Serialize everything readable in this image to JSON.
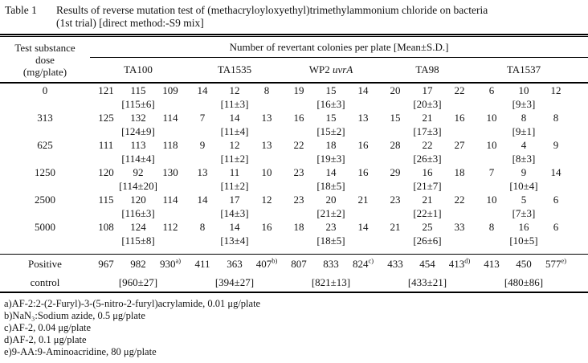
{
  "title": {
    "label": "Table 1",
    "line1": "Results of reverse mutation test of (methacryloyloxyethyl)trimethylammonium chloride on bacteria",
    "line2": "(1st trial) [direct method:-S9 mix]"
  },
  "table": {
    "dose_header": [
      "Test substance",
      "dose",
      "(mg/plate)"
    ],
    "span_header": "Number of revertant colonies per plate [Mean±S.D.]",
    "strains": [
      {
        "name": "TA100",
        "italic": ""
      },
      {
        "name": "TA1535",
        "italic": ""
      },
      {
        "name": "WP2 ",
        "italic": "uvrA"
      },
      {
        "name": "TA98",
        "italic": ""
      },
      {
        "name": "TA1537",
        "italic": ""
      }
    ],
    "dose_rows": [
      {
        "dose": "0",
        "plates": [
          [
            "121",
            "115",
            "109"
          ],
          [
            "14",
            "12",
            "8"
          ],
          [
            "19",
            "15",
            "14"
          ],
          [
            "20",
            "17",
            "22"
          ],
          [
            "6",
            "10",
            "12"
          ]
        ],
        "means": [
          "[115±6]",
          "[11±3]",
          "[16±3]",
          "[20±3]",
          "[9±3]"
        ]
      },
      {
        "dose": "313",
        "plates": [
          [
            "125",
            "132",
            "114"
          ],
          [
            "7",
            "14",
            "13"
          ],
          [
            "16",
            "15",
            "13"
          ],
          [
            "15",
            "21",
            "16"
          ],
          [
            "10",
            "8",
            "8"
          ]
        ],
        "means": [
          "[124±9]",
          "[11±4]",
          "[15±2]",
          "[17±3]",
          "[9±1]"
        ]
      },
      {
        "dose": "625",
        "plates": [
          [
            "111",
            "113",
            "118"
          ],
          [
            "9",
            "12",
            "13"
          ],
          [
            "22",
            "18",
            "16"
          ],
          [
            "28",
            "22",
            "27"
          ],
          [
            "10",
            "4",
            "9"
          ]
        ],
        "means": [
          "[114±4]",
          "[11±2]",
          "[19±3]",
          "[26±3]",
          "[8±3]"
        ]
      },
      {
        "dose": "1250",
        "plates": [
          [
            "120",
            "92",
            "130"
          ],
          [
            "13",
            "11",
            "10"
          ],
          [
            "23",
            "14",
            "16"
          ],
          [
            "29",
            "16",
            "18"
          ],
          [
            "7",
            "9",
            "14"
          ]
        ],
        "means": [
          "[114±20]",
          "[11±2]",
          "[18±5]",
          "[21±7]",
          "[10±4]"
        ]
      },
      {
        "dose": "2500",
        "plates": [
          [
            "115",
            "120",
            "114"
          ],
          [
            "14",
            "17",
            "12"
          ],
          [
            "23",
            "20",
            "21"
          ],
          [
            "23",
            "21",
            "22"
          ],
          [
            "10",
            "5",
            "6"
          ]
        ],
        "means": [
          "[116±3]",
          "[14±3]",
          "[21±2]",
          "[22±1]",
          "[7±3]"
        ]
      },
      {
        "dose": "5000",
        "plates": [
          [
            "108",
            "124",
            "112"
          ],
          [
            "8",
            "14",
            "16"
          ],
          [
            "18",
            "23",
            "14"
          ],
          [
            "21",
            "25",
            "33"
          ],
          [
            "8",
            "16",
            "6"
          ]
        ],
        "means": [
          "[115±8]",
          "[13±4]",
          "[18±5]",
          "[26±6]",
          "[10±5]"
        ]
      }
    ],
    "positive_control": {
      "label_line1": "Positive",
      "label_line2": "control",
      "plates": [
        [
          "967",
          "982",
          "930"
        ],
        [
          "411",
          "363",
          "407"
        ],
        [
          "807",
          "833",
          "824"
        ],
        [
          "433",
          "454",
          "413"
        ],
        [
          "413",
          "450",
          "577"
        ]
      ],
      "sup_marks": [
        "a)",
        "b)",
        "c)",
        "d)",
        "e)"
      ],
      "means": [
        "[960±27]",
        "[394±27]",
        "[821±13]",
        "[433±21]",
        "[480±86]"
      ]
    }
  },
  "footnotes": [
    "a)AF-2:2-(2-Furyl)-3-(5-nitro-2-furyl)acrylamide, 0.01 μg/plate",
    "b)NaN₃:Sodium azide, 0.5 μg/plate",
    "c)AF-2, 0.04 μg/plate",
    "d)AF-2, 0.1 μg/plate",
    "e)9-AA:9-Aminoacridine, 80 μg/plate"
  ]
}
